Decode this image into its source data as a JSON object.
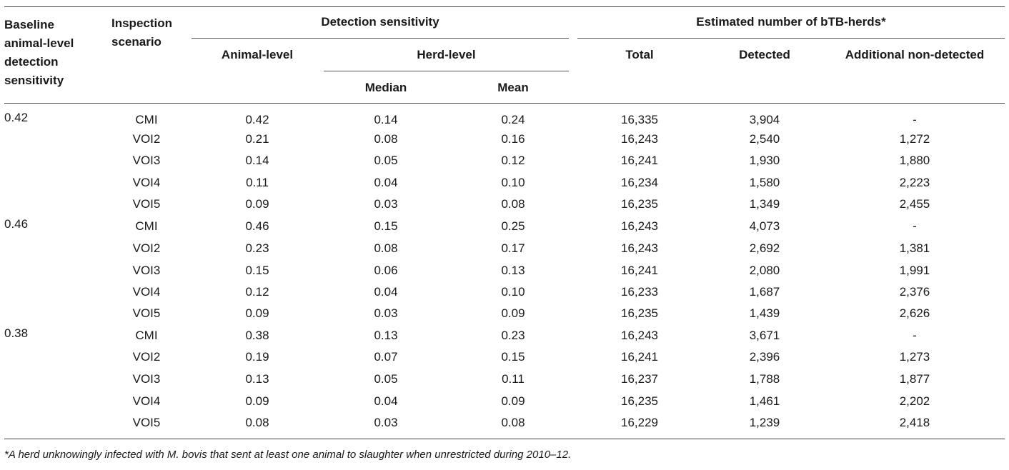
{
  "table": {
    "headers": {
      "baseline": [
        "Baseline",
        "animal-level",
        "detection",
        "sensitivity"
      ],
      "scenario": [
        "Inspection",
        "scenario"
      ],
      "detection_group": "Detection sensitivity",
      "animal_level": "Animal-level",
      "herd_level": "Herd-level",
      "median": "Median",
      "mean": "Mean",
      "estimated_group": "Estimated number of bTB-herds*",
      "total": "Total",
      "detected": "Detected",
      "additional": "Additional non-detected"
    },
    "rows": [
      [
        "0.42",
        "CMI",
        "0.42",
        "0.14",
        "0.24",
        "16,335",
        "3,904",
        "-"
      ],
      [
        "",
        "VOI2",
        "0.21",
        "0.08",
        "0.16",
        "16,243",
        "2,540",
        "1,272"
      ],
      [
        "",
        "VOI3",
        "0.14",
        "0.05",
        "0.12",
        "16,241",
        "1,930",
        "1,880"
      ],
      [
        "",
        "VOI4",
        "0.11",
        "0.04",
        "0.10",
        "16,234",
        "1,580",
        "2,223"
      ],
      [
        "",
        "VOI5",
        "0.09",
        "0.03",
        "0.08",
        "16,235",
        "1,349",
        "2,455"
      ],
      [
        "0.46",
        "CMI",
        "0.46",
        "0.15",
        "0.25",
        "16,243",
        "4,073",
        "-"
      ],
      [
        "",
        "VOI2",
        "0.23",
        "0.08",
        "0.17",
        "16,243",
        "2,692",
        "1,381"
      ],
      [
        "",
        "VOI3",
        "0.15",
        "0.06",
        "0.13",
        "16,241",
        "2,080",
        "1,991"
      ],
      [
        "",
        "VOI4",
        "0.12",
        "0.04",
        "0.10",
        "16,233",
        "1,687",
        "2,376"
      ],
      [
        "",
        "VOI5",
        "0.09",
        "0.03",
        "0.09",
        "16,235",
        "1,439",
        "2,626"
      ],
      [
        "0.38",
        "CMI",
        "0.38",
        "0.13",
        "0.23",
        "16,243",
        "3,671",
        "-"
      ],
      [
        "",
        "VOI2",
        "0.19",
        "0.07",
        "0.15",
        "16,241",
        "2,396",
        "1,273"
      ],
      [
        "",
        "VOI3",
        "0.13",
        "0.05",
        "0.11",
        "16,237",
        "1,788",
        "1,877"
      ],
      [
        "",
        "VOI4",
        "0.09",
        "0.04",
        "0.09",
        "16,235",
        "1,461",
        "2,202"
      ],
      [
        "",
        "VOI5",
        "0.08",
        "0.03",
        "0.08",
        "16,229",
        "1,239",
        "2,418"
      ]
    ]
  },
  "footnote": "*A herd unknowingly infected with M. bovis that sent at least one animal to slaughter when unrestricted during 2010–12."
}
